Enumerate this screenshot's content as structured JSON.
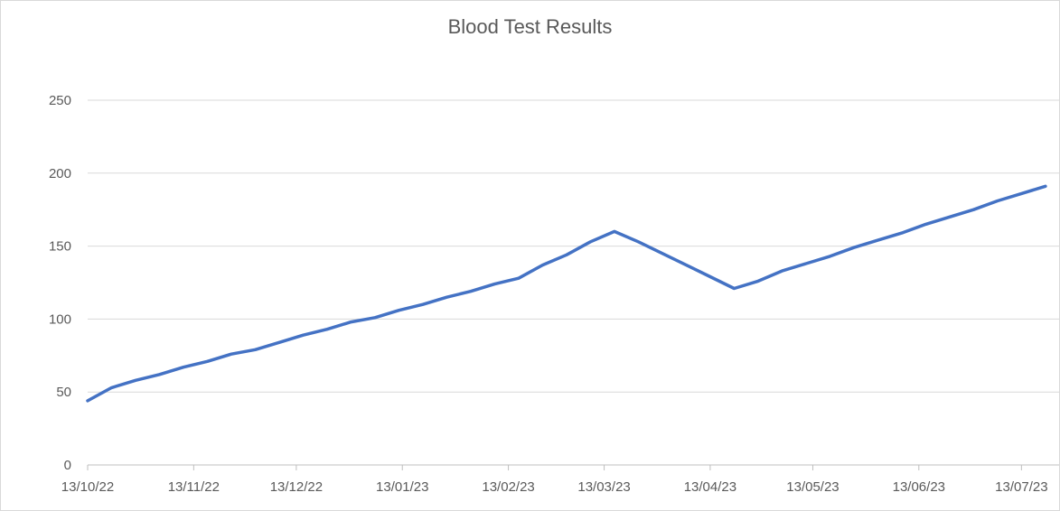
{
  "chart_data": {
    "type": "line",
    "title": "Blood Test Results",
    "xlabel": "",
    "ylabel": "",
    "ylim": [
      0,
      250
    ],
    "yticks": [
      0,
      50,
      100,
      150,
      200,
      250
    ],
    "xticks": [
      "13/10/22",
      "13/11/22",
      "13/12/22",
      "13/01/23",
      "13/02/23",
      "13/03/23",
      "13/04/23",
      "13/05/23",
      "13/06/23",
      "13/07/23"
    ],
    "xlim": [
      "2022-10-13",
      "2023-07-24"
    ],
    "grid": true,
    "legend": "none",
    "series": [
      {
        "color": "#4472c4",
        "points": [
          [
            "2022-10-13",
            44
          ],
          [
            "2022-10-20",
            53
          ],
          [
            "2022-10-27",
            58
          ],
          [
            "2022-11-03",
            62
          ],
          [
            "2022-11-10",
            67
          ],
          [
            "2022-11-17",
            71
          ],
          [
            "2022-11-24",
            76
          ],
          [
            "2022-12-01",
            79
          ],
          [
            "2022-12-08",
            84
          ],
          [
            "2022-12-15",
            89
          ],
          [
            "2022-12-22",
            93
          ],
          [
            "2022-12-29",
            98
          ],
          [
            "2023-01-05",
            101
          ],
          [
            "2023-01-12",
            106
          ],
          [
            "2023-01-19",
            110
          ],
          [
            "2023-01-26",
            115
          ],
          [
            "2023-02-02",
            119
          ],
          [
            "2023-02-09",
            124
          ],
          [
            "2023-02-16",
            128
          ],
          [
            "2023-02-23",
            137
          ],
          [
            "2023-03-02",
            144
          ],
          [
            "2023-03-09",
            153
          ],
          [
            "2023-03-16",
            160
          ],
          [
            "2023-03-23",
            153
          ],
          [
            "2023-03-30",
            145
          ],
          [
            "2023-04-06",
            137
          ],
          [
            "2023-04-13",
            129
          ],
          [
            "2023-04-20",
            121
          ],
          [
            "2023-04-27",
            126
          ],
          [
            "2023-05-04",
            133
          ],
          [
            "2023-05-11",
            138
          ],
          [
            "2023-05-18",
            143
          ],
          [
            "2023-05-25",
            149
          ],
          [
            "2023-06-01",
            154
          ],
          [
            "2023-06-08",
            159
          ],
          [
            "2023-06-15",
            165
          ],
          [
            "2023-06-22",
            170
          ],
          [
            "2023-06-29",
            175
          ],
          [
            "2023-07-06",
            181
          ],
          [
            "2023-07-13",
            186
          ],
          [
            "2023-07-20",
            191
          ]
        ]
      }
    ]
  }
}
